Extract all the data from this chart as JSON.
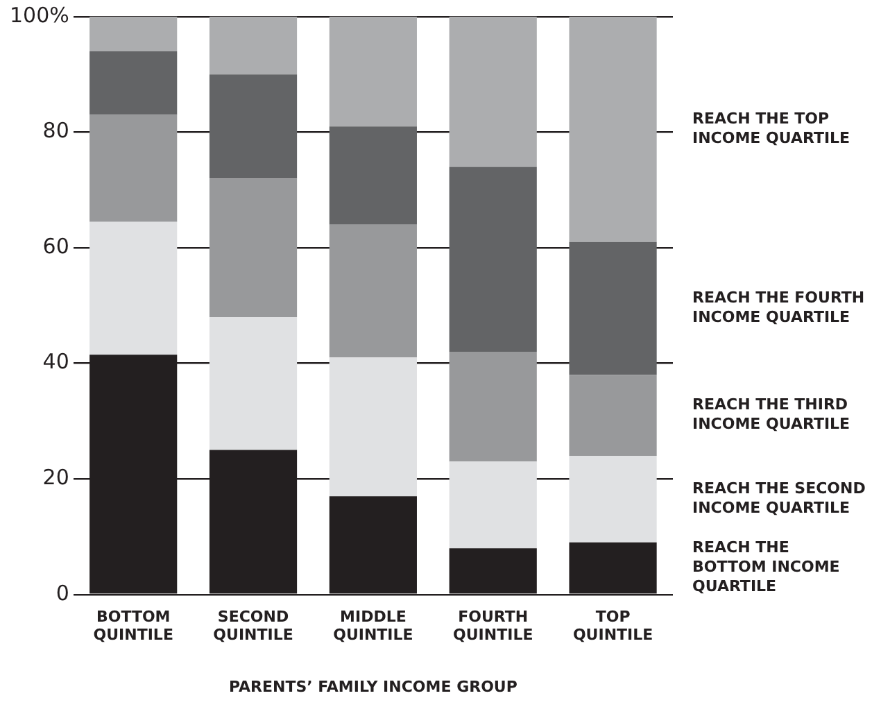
{
  "chart_data": {
    "type": "bar",
    "stacked": true,
    "xlabel": "PARENTS’ FAMILY INCOME GROUP",
    "categories": [
      "BOTTOM QUINTILE",
      "SECOND QUINTILE",
      "MIDDLE QUINTILE",
      "FOURTH QUINTILE",
      "TOP QUINTILE"
    ],
    "series": [
      {
        "name": "REACH THE BOTTOM INCOME QUARTILE",
        "color": "#231f20",
        "values": [
          41.5,
          25,
          17,
          8,
          9
        ]
      },
      {
        "name": "REACH THE SECOND INCOME QUARTILE",
        "color": "#e0e1e3",
        "values": [
          23,
          23,
          24,
          15,
          15
        ]
      },
      {
        "name": "REACH THE THIRD INCOME QUARTILE",
        "color": "#98999b",
        "values": [
          18.5,
          24,
          23,
          19,
          14
        ]
      },
      {
        "name": "REACH THE FOURTH INCOME QUARTILE",
        "color": "#636466",
        "values": [
          11,
          18,
          17,
          32,
          23
        ]
      },
      {
        "name": "REACH THE TOP INCOME QUARTILE",
        "color": "#acadaf",
        "values": [
          6,
          10,
          19,
          26,
          39
        ]
      }
    ],
    "ylim": [
      0,
      100
    ],
    "yticks": [
      0,
      20,
      40,
      60,
      80,
      {
        "value": 100,
        "label": "100%"
      }
    ],
    "grid": "y",
    "legend": "right"
  }
}
